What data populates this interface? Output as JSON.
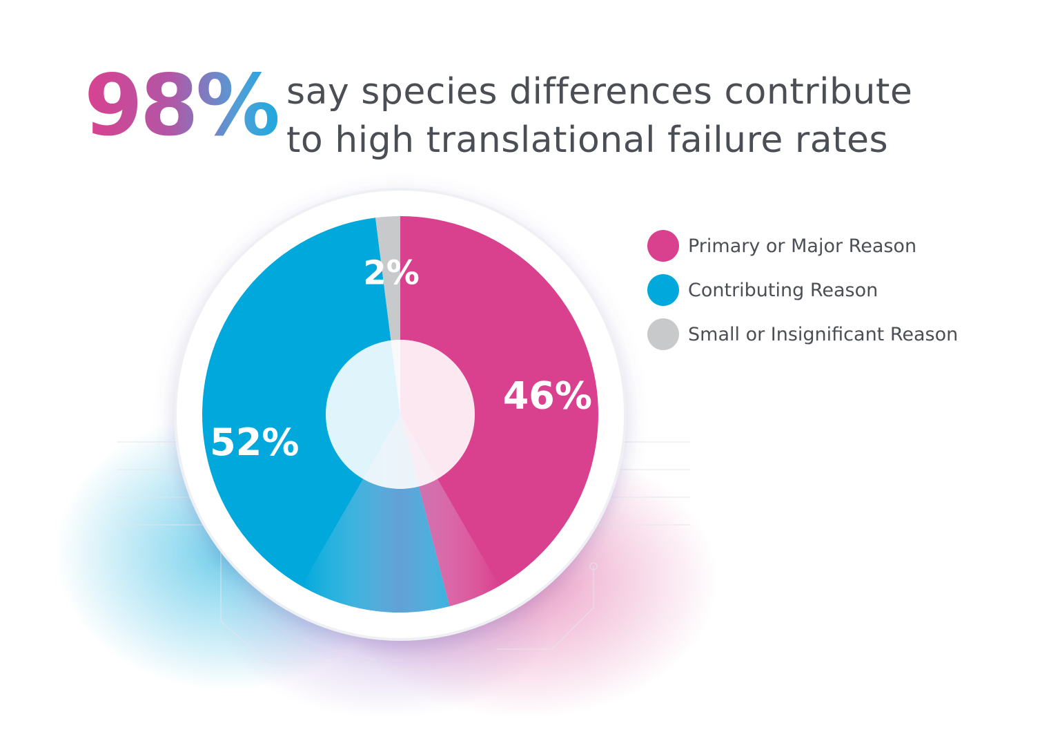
{
  "headline": {
    "big_number": "98%",
    "line1": "say species differences contribute",
    "line2": "to high translational failure rates"
  },
  "colors": {
    "primary": "#d9418f",
    "contributing": "#00a8db",
    "small": "#c8c9cb",
    "text": "#4b4f55"
  },
  "chart_data": {
    "type": "pie",
    "title": "98% say species differences contribute to high translational failure rates",
    "slices": [
      {
        "name": "Primary or Major Reason",
        "value": 46,
        "label": "46%",
        "color": "#d9418f"
      },
      {
        "name": "Contributing Reason",
        "value": 52,
        "label": "52%",
        "color": "#00a8db"
      },
      {
        "name": "Small or Insignificant Reason",
        "value": 2,
        "label": "2%",
        "color": "#c8c9cb"
      }
    ],
    "legend_position": "right",
    "donut": true
  }
}
